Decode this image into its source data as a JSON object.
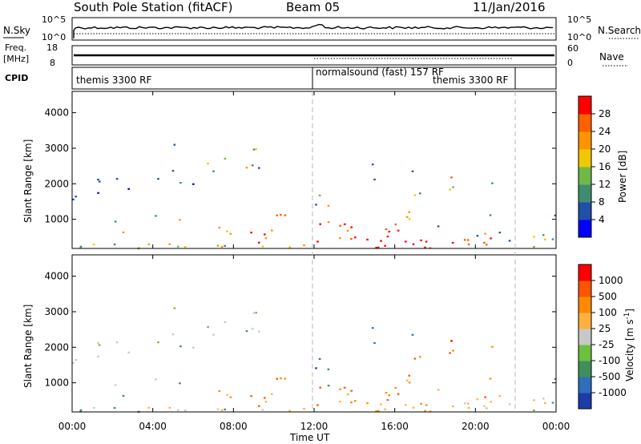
{
  "header": {
    "title": "South Pole Station (fitACF)",
    "beam": "Beam 05",
    "date": "11/Jan/2016"
  },
  "noise_panel": {
    "left_label": "N.Sky",
    "left_ticks": [
      "10^5",
      "10^0"
    ],
    "right_label": "N.Search",
    "right_ticks": [
      "10^5",
      "10^0"
    ]
  },
  "freq_panel": {
    "left_label_1": "Freq.",
    "left_label_2": "[MHz]",
    "left_ticks": [
      "18",
      "8"
    ],
    "right_label": "Nave",
    "right_ticks": [
      "60",
      "0"
    ]
  },
  "cpid_panel": {
    "label": "CPID",
    "segments": [
      {
        "text": "themis 3300 RF",
        "start_hour": 0
      },
      {
        "text": "normalsound (fast) 157 RF",
        "start_hour": 12
      },
      {
        "text": "themis 3300 RF",
        "start_hour": 22
      }
    ]
  },
  "chart_data": [
    {
      "type": "heatmap",
      "name": "power",
      "ylabel": "Slant Range [km]",
      "y_ticks": [
        1000,
        2000,
        3000,
        4000
      ],
      "ylim": [
        180,
        4600
      ],
      "xlim": [
        0,
        24
      ],
      "colorbar": {
        "label": "Power [dB]",
        "ticks": [
          "28",
          "24",
          "20",
          "16",
          "12",
          "8",
          "4"
        ],
        "colors": [
          "#0000ff",
          "#2050a8",
          "#408c70",
          "#70b848",
          "#f0c800",
          "#ff9400",
          "#ff6000",
          "#ff0000"
        ]
      }
    },
    {
      "type": "heatmap",
      "name": "velocity",
      "ylabel": "Slant Range [km]",
      "y_ticks": [
        1000,
        2000,
        3000,
        4000
      ],
      "ylim": [
        180,
        4600
      ],
      "xlim": [
        0,
        24
      ],
      "xlabel": "Time UT",
      "x_ticks": [
        "00:00",
        "04:00",
        "08:00",
        "12:00",
        "16:00",
        "20:00",
        "00:00"
      ],
      "colorbar": {
        "label": "Velocity [m s^-1]",
        "ticks": [
          "1000",
          "500",
          "100",
          "25",
          "-25",
          "-100",
          "-500",
          "-1000"
        ],
        "colors": [
          "#1c3ca8",
          "#2f6dbd",
          "#3f8f5c",
          "#6cc040",
          "#c8c8c8",
          "#ffb040",
          "#ff8a00",
          "#ff5500",
          "#ff0000"
        ]
      }
    }
  ]
}
